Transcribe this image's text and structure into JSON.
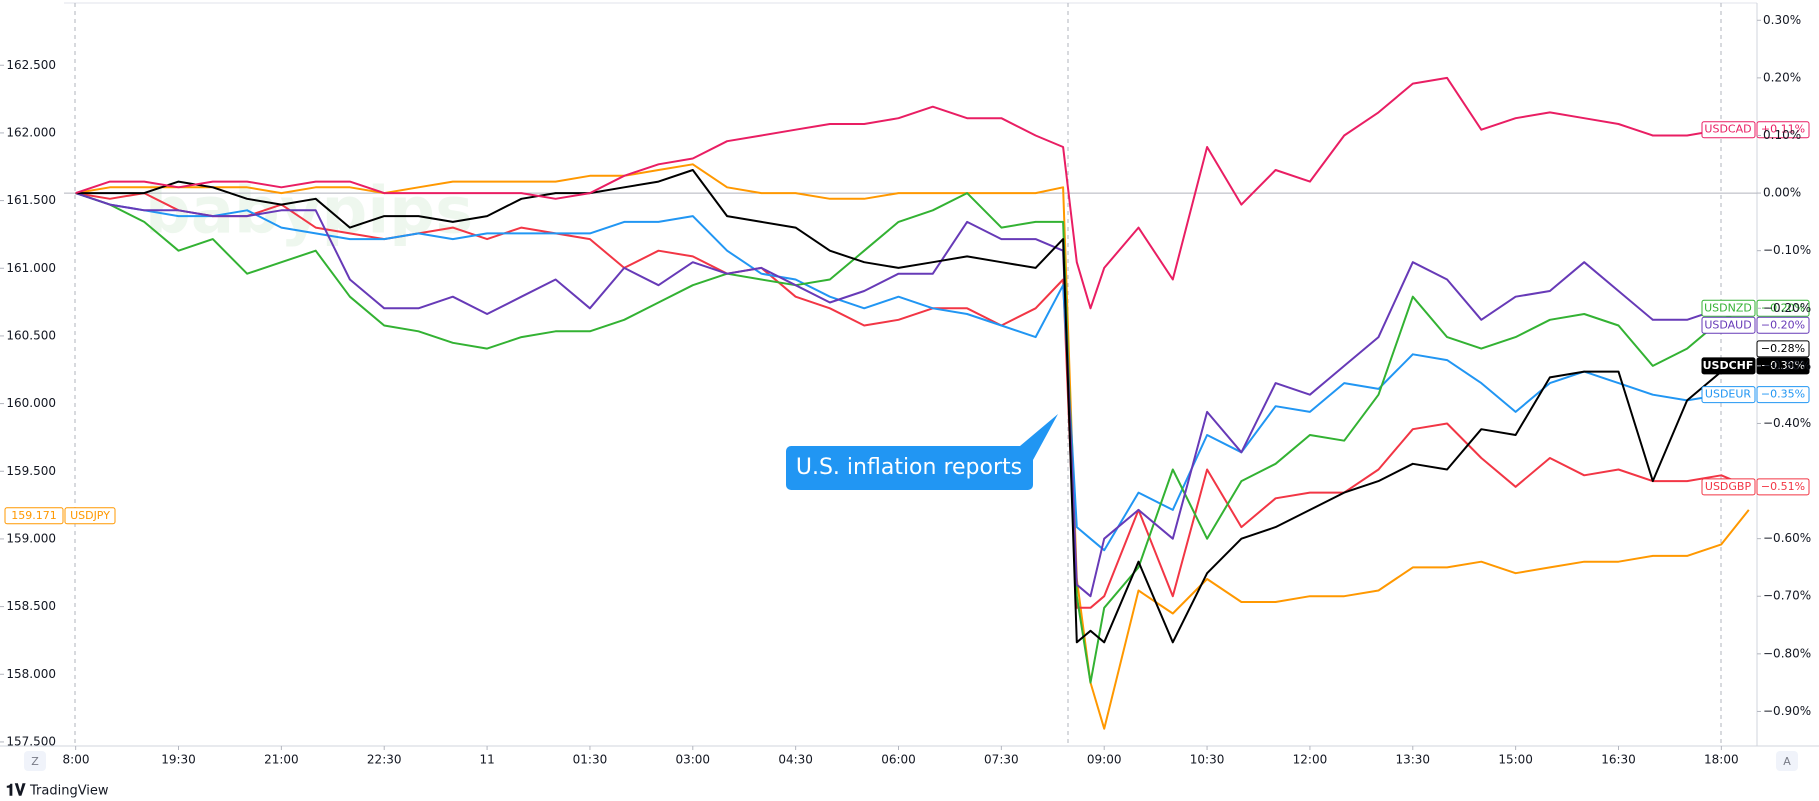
{
  "chart_data": {
    "type": "line",
    "watermark": "babypips",
    "annotation": "U.S. inflation reports",
    "footer": "TradingView",
    "buttons": [
      "Z",
      "A"
    ],
    "x": [
      0,
      0.5,
      1,
      1.5,
      2,
      2.5,
      3,
      3.5,
      4,
      4.5,
      5,
      5.5,
      6,
      6.5,
      7,
      7.5,
      8,
      8.5,
      9,
      9.5,
      10,
      10.5,
      11,
      11.5,
      12,
      12.5,
      13,
      13.5,
      14,
      14.4,
      14.6,
      14.8,
      15,
      15.5,
      16,
      16.5,
      17,
      17.5,
      18,
      18.5,
      19,
      19.5,
      20,
      20.5,
      21,
      21.5,
      22,
      22.5,
      23,
      23.5,
      24,
      24.4
    ],
    "xlim": [
      -0.17,
      24.52
    ],
    "xticks": [
      {
        "value": 0,
        "label": "8:00"
      },
      {
        "value": 1.5,
        "label": "19:30"
      },
      {
        "value": 3,
        "label": "21:00"
      },
      {
        "value": 4.5,
        "label": "22:30"
      },
      {
        "value": 6,
        "label": "11"
      },
      {
        "value": 7.5,
        "label": "01:30"
      },
      {
        "value": 9,
        "label": "03:00"
      },
      {
        "value": 10.5,
        "label": "04:30"
      },
      {
        "value": 12,
        "label": "06:00"
      },
      {
        "value": 13.5,
        "label": "07:30"
      },
      {
        "value": 15,
        "label": "09:00"
      },
      {
        "value": 16.5,
        "label": "10:30"
      },
      {
        "value": 18,
        "label": "12:00"
      },
      {
        "value": 19.5,
        "label": "13:30"
      },
      {
        "value": 21,
        "label": "15:00"
      },
      {
        "value": 22.5,
        "label": "16:30"
      },
      {
        "value": 24,
        "label": "18:00"
      }
    ],
    "ylim": [
      157.47,
      162.96
    ],
    "yticks": [
      {
        "value": 157.5,
        "label": "157.500"
      },
      {
        "value": 158,
        "label": "158.000"
      },
      {
        "value": 158.5,
        "label": "158.500"
      },
      {
        "value": 159,
        "label": "159.000"
      },
      {
        "value": 159.5,
        "label": "159.500"
      },
      {
        "value": 160,
        "label": "160.000"
      },
      {
        "value": 160.5,
        "label": "160.500"
      },
      {
        "value": 161,
        "label": "161.000"
      },
      {
        "value": 161.5,
        "label": "161.500"
      },
      {
        "value": 162,
        "label": "162.000"
      },
      {
        "value": 162.5,
        "label": "162.500"
      }
    ],
    "y2lim": [
      -0.96,
      0.33
    ],
    "y2ticks": [
      {
        "value": 0.3,
        "label": "0.30%"
      },
      {
        "value": 0.2,
        "label": "0.20%"
      },
      {
        "value": 0.1,
        "label": "0.10%"
      },
      {
        "value": 0,
        "label": "0.00%"
      },
      {
        "value": -0.1,
        "label": "−0.10%"
      },
      {
        "value": -0.2,
        "label": "−0.20%"
      },
      {
        "value": -0.3,
        "label": "−0.30%"
      },
      {
        "value": -0.4,
        "label": "−0.40%"
      },
      {
        "value": -0.6,
        "label": "−0.60%"
      },
      {
        "value": -0.7,
        "label": "−0.70%"
      },
      {
        "value": -0.8,
        "label": "−0.80%"
      },
      {
        "value": -0.9,
        "label": "−0.90%"
      }
    ],
    "zero_line": 0,
    "price_marker": {
      "price": 159.171,
      "name": "USDJPY"
    },
    "extra_label": {
      "value": -0.28,
      "label": "−0.28%"
    },
    "series": [
      {
        "name": "USDJPY",
        "color": "#ff9800",
        "axis": "y2",
        "values": [
          0,
          0.01,
          0.01,
          0.01,
          0.01,
          0.01,
          0,
          0.01,
          0.01,
          0,
          0.01,
          0.02,
          0.02,
          0.02,
          0.02,
          0.03,
          0.03,
          0.04,
          0.05,
          0.01,
          0,
          0,
          -0.01,
          -0.01,
          0,
          0,
          0,
          0,
          0,
          0.01,
          -0.67,
          -0.85,
          -0.93,
          -0.69,
          -0.73,
          -0.67,
          -0.71,
          -0.71,
          -0.7,
          -0.7,
          -0.69,
          -0.65,
          -0.65,
          -0.64,
          -0.66,
          -0.65,
          -0.64,
          -0.64,
          -0.63,
          -0.63,
          -0.61,
          -0.55
        ]
      },
      {
        "name": "USDGBP",
        "color": "#f23645",
        "axis": "y2",
        "value_label": "−0.51%",
        "values": [
          0,
          -0.01,
          0,
          -0.03,
          -0.04,
          -0.04,
          -0.02,
          -0.06,
          -0.07,
          -0.08,
          -0.07,
          -0.06,
          -0.08,
          -0.06,
          -0.07,
          -0.08,
          -0.13,
          -0.1,
          -0.11,
          -0.14,
          -0.13,
          -0.18,
          -0.2,
          -0.23,
          -0.22,
          -0.2,
          -0.2,
          -0.23,
          -0.2,
          -0.15,
          -0.72,
          -0.72,
          -0.7,
          -0.55,
          -0.7,
          -0.48,
          -0.58,
          -0.53,
          -0.52,
          -0.52,
          -0.48,
          -0.41,
          -0.4,
          -0.46,
          -0.51,
          -0.46,
          -0.49,
          -0.48,
          -0.5,
          -0.5,
          -0.49,
          -0.51
        ]
      },
      {
        "name": "USDEUR",
        "color": "#2196f3",
        "axis": "y2",
        "value_label": "−0.35%",
        "values": [
          0,
          -0.02,
          -0.03,
          -0.04,
          -0.04,
          -0.03,
          -0.06,
          -0.07,
          -0.08,
          -0.08,
          -0.07,
          -0.08,
          -0.07,
          -0.07,
          -0.07,
          -0.07,
          -0.05,
          -0.05,
          -0.04,
          -0.1,
          -0.14,
          -0.15,
          -0.18,
          -0.2,
          -0.18,
          -0.2,
          -0.21,
          -0.23,
          -0.25,
          -0.16,
          -0.58,
          -0.6,
          -0.62,
          -0.52,
          -0.55,
          -0.42,
          -0.45,
          -0.37,
          -0.38,
          -0.33,
          -0.34,
          -0.28,
          -0.29,
          -0.33,
          -0.38,
          -0.33,
          -0.31,
          -0.33,
          -0.35,
          -0.36,
          -0.35,
          -0.35
        ]
      },
      {
        "name": "USDNZD",
        "color": "#33b233",
        "axis": "y2",
        "value_label": "−0.20%",
        "values": [
          0,
          -0.02,
          -0.05,
          -0.1,
          -0.08,
          -0.14,
          -0.12,
          -0.1,
          -0.18,
          -0.23,
          -0.24,
          -0.26,
          -0.27,
          -0.25,
          -0.24,
          -0.24,
          -0.22,
          -0.19,
          -0.16,
          -0.14,
          -0.15,
          -0.16,
          -0.15,
          -0.1,
          -0.05,
          -0.03,
          0,
          -0.06,
          -0.05,
          -0.05,
          -0.7,
          -0.85,
          -0.72,
          -0.65,
          -0.48,
          -0.6,
          -0.5,
          -0.47,
          -0.42,
          -0.43,
          -0.35,
          -0.18,
          -0.25,
          -0.27,
          -0.25,
          -0.22,
          -0.21,
          -0.23,
          -0.3,
          -0.27,
          -0.22,
          -0.2
        ]
      },
      {
        "name": "USDAUD",
        "color": "#673ab7",
        "axis": "y2",
        "value_label": "−0.20%",
        "values": [
          0,
          -0.02,
          -0.03,
          -0.03,
          -0.04,
          -0.04,
          -0.03,
          -0.03,
          -0.15,
          -0.2,
          -0.2,
          -0.18,
          -0.21,
          -0.18,
          -0.15,
          -0.2,
          -0.13,
          -0.16,
          -0.12,
          -0.14,
          -0.13,
          -0.16,
          -0.19,
          -0.17,
          -0.14,
          -0.14,
          -0.05,
          -0.08,
          -0.08,
          -0.1,
          -0.68,
          -0.7,
          -0.6,
          -0.55,
          -0.6,
          -0.38,
          -0.45,
          -0.33,
          -0.35,
          -0.3,
          -0.25,
          -0.12,
          -0.15,
          -0.22,
          -0.18,
          -0.17,
          -0.12,
          -0.17,
          -0.22,
          -0.22,
          -0.2,
          -0.2
        ]
      },
      {
        "name": "USDCHF",
        "color": "#000000",
        "axis": "y2",
        "selected": true,
        "value_label": "−0.30%",
        "values": [
          0,
          0,
          0,
          0.02,
          0.01,
          -0.01,
          -0.02,
          -0.01,
          -0.06,
          -0.04,
          -0.04,
          -0.05,
          -0.04,
          -0.01,
          0,
          0,
          0.01,
          0.02,
          0.04,
          -0.04,
          -0.05,
          -0.06,
          -0.1,
          -0.12,
          -0.13,
          -0.12,
          -0.11,
          -0.12,
          -0.13,
          -0.08,
          -0.78,
          -0.76,
          -0.78,
          -0.64,
          -0.78,
          -0.66,
          -0.6,
          -0.58,
          -0.55,
          -0.52,
          -0.5,
          -0.47,
          -0.48,
          -0.41,
          -0.42,
          -0.32,
          -0.31,
          -0.31,
          -0.5,
          -0.36,
          -0.31,
          -0.3
        ]
      },
      {
        "name": "USDCAD",
        "color": "#e91e63",
        "axis": "y2",
        "value_label": "+0.11%",
        "values": [
          0,
          0.02,
          0.02,
          0.01,
          0.02,
          0.02,
          0.01,
          0.02,
          0.02,
          0,
          0,
          0,
          0,
          0,
          -0.01,
          0,
          0.03,
          0.05,
          0.06,
          0.09,
          0.1,
          0.11,
          0.12,
          0.12,
          0.13,
          0.15,
          0.13,
          0.13,
          0.1,
          0.08,
          -0.12,
          -0.2,
          -0.13,
          -0.06,
          -0.15,
          0.08,
          -0.02,
          0.04,
          0.02,
          0.1,
          0.14,
          0.19,
          0.2,
          0.11,
          0.13,
          0.14,
          0.13,
          0.12,
          0.1,
          0.1,
          0.11,
          0.11
        ]
      }
    ]
  }
}
